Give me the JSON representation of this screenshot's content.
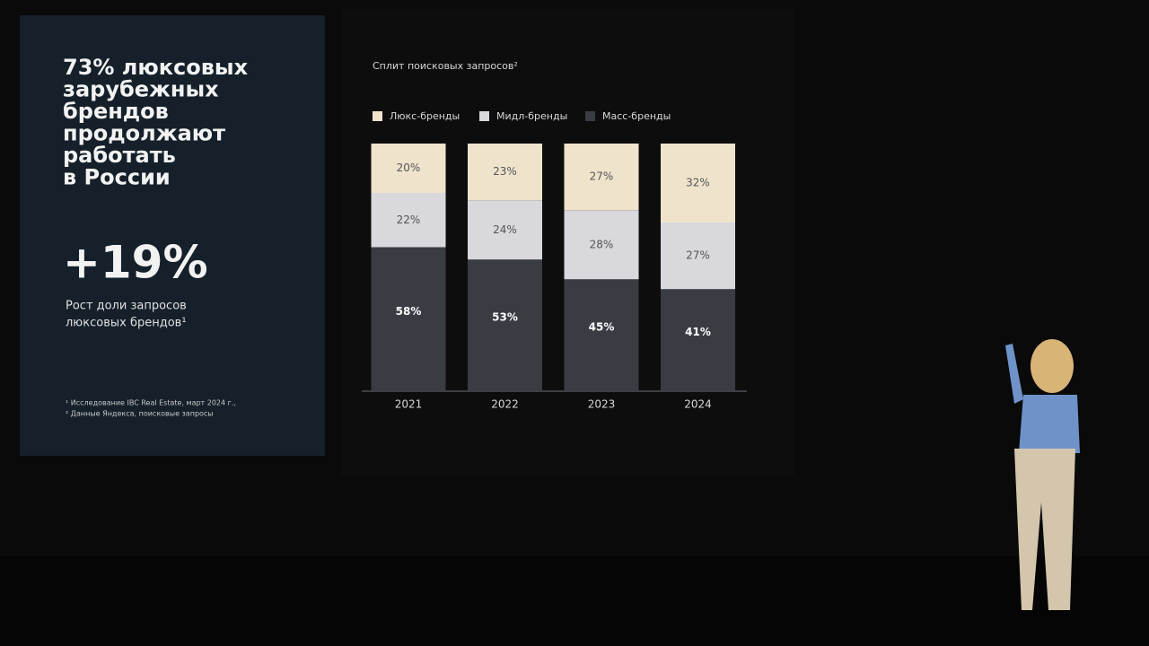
{
  "panel": {
    "headline": [
      "73% люксовых",
      "зарубежных",
      "брендов",
      "продолжают",
      "работать",
      "в России"
    ],
    "big_number": "+19%",
    "big_caption": [
      "Рост доли запросов",
      "люксовых брендов¹"
    ],
    "footnotes": [
      "¹ Исследование IBC Real Estate, март 2024 г.,",
      "² Данные Яндекса, поисковые запросы"
    ]
  },
  "chart_data": {
    "type": "stacked_bar",
    "title": "Сплит поисковых запросов²",
    "categories": [
      "2021",
      "2022",
      "2023",
      "2024"
    ],
    "series": [
      {
        "name": "Люкс-бренды",
        "color": "#efe3cc",
        "values": [
          20,
          23,
          27,
          32
        ],
        "value_labels": [
          "20%",
          "23%",
          "27%",
          "32%"
        ]
      },
      {
        "name": "Мидл-бренды",
        "color": "#d8d8dd",
        "values": [
          22,
          24,
          28,
          27
        ],
        "value_labels": [
          "22%",
          "24%",
          "28%",
          "27%"
        ]
      },
      {
        "name": "Масс-бренды",
        "color": "#393c43",
        "values": [
          58,
          53,
          45,
          41
        ],
        "value_labels": [
          "58%",
          "53%",
          "45%",
          "41%"
        ]
      }
    ]
  }
}
